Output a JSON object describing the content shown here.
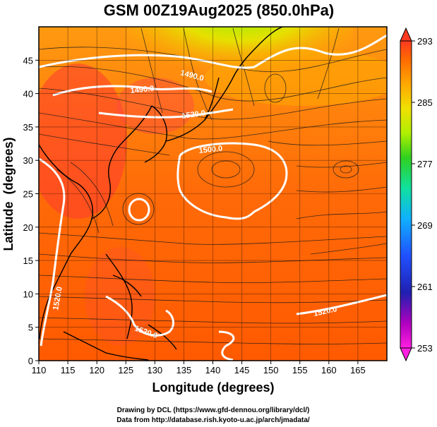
{
  "figure": {
    "title": "GSM 00Z19Aug2025 (850.0hPa)",
    "xlabel": "Longitude (degrees)",
    "ylabel": "Latitude  (degrees)",
    "credit_line1": "Drawing by DCL (https://www.gfd-dennou.org/library/dcl/)",
    "credit_line2": "Data from http://database.rish.kyoto-u.ac.jp/arch/jmadata/"
  },
  "map": {
    "lon_range": [
      110,
      170
    ],
    "lat_range": [
      0,
      50
    ],
    "x_ticks": [
      "110",
      "115",
      "120",
      "125",
      "130",
      "135",
      "140",
      "145",
      "150",
      "155",
      "160",
      "165"
    ],
    "y_ticks": [
      "0",
      "5",
      "10",
      "15",
      "20",
      "25",
      "30",
      "35",
      "40",
      "45"
    ],
    "grid": "on"
  },
  "colorbar": {
    "labels": [
      "293",
      "285",
      "277",
      "269",
      "261",
      "253"
    ],
    "range": [
      253,
      293
    ],
    "colors": [
      "#ff1fe0",
      "#b000c0",
      "#2020b0",
      "#2050ff",
      "#10b0ff",
      "#10e0a0",
      "#30d020",
      "#b0f000",
      "#f0e000",
      "#ffa800",
      "#ff6a00",
      "#ff3a20"
    ]
  },
  "contours": {
    "labels": [
      "1490.0",
      "1490.0",
      "1520.0",
      "1500.0",
      "1520.0",
      "1520.0",
      "1520.0"
    ]
  }
}
